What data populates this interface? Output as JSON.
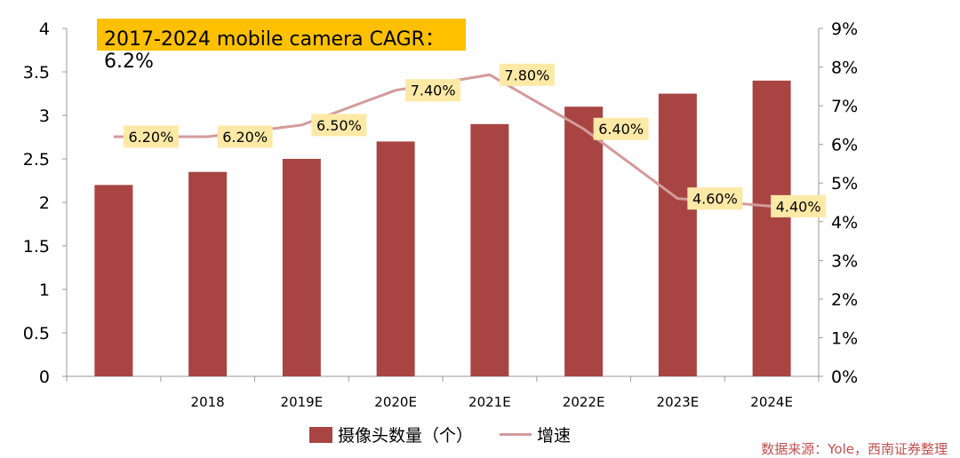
{
  "callout": {
    "line1": "2017-2024 mobile camera CAGR：",
    "line2": "6.2%"
  },
  "legend": {
    "bar_label": "摄像头数量（个）",
    "line_label": "增速"
  },
  "source": "数据来源：Yole，西南证券整理",
  "colors": {
    "bar": "#a84543",
    "line": "#d39b9a",
    "label_bg": "#fde9a6",
    "callout_bg": "#ffc000",
    "source_text": "#c0504d"
  },
  "chart_data": {
    "type": "bar",
    "categories": [
      "",
      "2018",
      "2019E",
      "2020E",
      "2021E",
      "2022E",
      "2023E",
      "2024E"
    ],
    "series": [
      {
        "name": "摄像头数量（个）",
        "type": "bar",
        "axis": "left",
        "values": [
          2.2,
          2.35,
          2.5,
          2.7,
          2.9,
          3.1,
          3.25,
          3.4
        ]
      },
      {
        "name": "增速",
        "type": "line",
        "axis": "right",
        "values": [
          6.2,
          6.2,
          6.5,
          7.4,
          7.8,
          6.4,
          4.6,
          4.4
        ],
        "labels": [
          "6.20%",
          "6.20%",
          "6.50%",
          "7.40%",
          "7.80%",
          "6.40%",
          "4.60%",
          "4.40%"
        ]
      }
    ],
    "ylim_left": [
      0,
      4
    ],
    "yticks_left": [
      "0",
      "0.5",
      "1",
      "1.5",
      "2",
      "2.5",
      "3",
      "3.5",
      "4"
    ],
    "ylim_right": [
      0,
      9
    ],
    "yticks_right": [
      "0%",
      "1%",
      "2%",
      "3%",
      "4%",
      "5%",
      "6%",
      "7%",
      "8%",
      "9%"
    ],
    "grid": false,
    "legend_position": "bottom"
  }
}
